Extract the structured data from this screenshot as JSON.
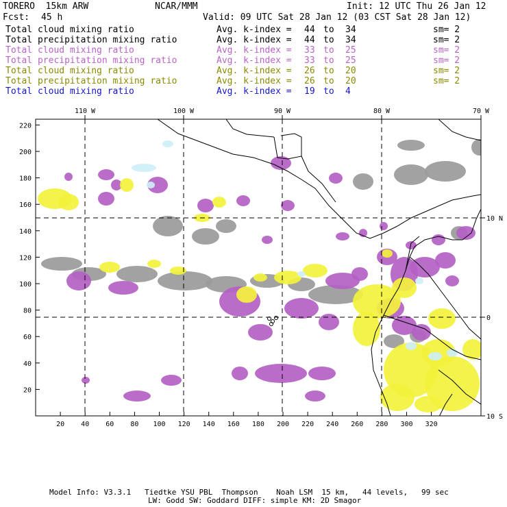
{
  "header": {
    "model": "TORERO  15km ARW",
    "org": "NCAR/MMM",
    "init": "Init: 12 UTC Thu 26 Jan 12",
    "fcst_label": "Fcst:",
    "fcst_value": "45 h",
    "valid": "Valid: 09 UTC Sat 28 Jan 12 (03 CST Sat 28 Jan 12)"
  },
  "legend": [
    {
      "field": "Total cloud mixing ratio",
      "kindex": "Avg. k-index = ",
      "from": "44",
      "to_word": "to",
      "to": "34",
      "sm": "sm= 2",
      "color": "#000000"
    },
    {
      "field": "Total precipitation mixing ratio",
      "kindex": "Avg. k-index = ",
      "from": "44",
      "to_word": "to",
      "to": "34",
      "sm": "sm= 2",
      "color": "#000000"
    },
    {
      "field": "Total cloud mixing ratio",
      "kindex": "Avg. k-index = ",
      "from": "33",
      "to_word": "to",
      "to": "25",
      "sm": "sm= 2",
      "color": "#b863c8"
    },
    {
      "field": "Total precipitation mixing ratio",
      "kindex": "Avg. k-index = ",
      "from": "33",
      "to_word": "to",
      "to": "25",
      "sm": "sm= 2",
      "color": "#b863c8"
    },
    {
      "field": "Total cloud mixing ratio",
      "kindex": "Avg. k-index = ",
      "from": "26",
      "to_word": "to",
      "to": "20",
      "sm": "sm= 2",
      "color": "#8a8a00"
    },
    {
      "field": "Total precipitation mixing ratio",
      "kindex": "Avg. k-index = ",
      "from": "26",
      "to_word": "to",
      "to": "20",
      "sm": "sm= 2",
      "color": "#8a8a00"
    },
    {
      "field": "Total cloud mixing ratio",
      "kindex": "Avg. k-index = ",
      "from": "19",
      "to_word": "to",
      "to": "4",
      "sm": "",
      "color": "#1515d0"
    }
  ],
  "map": {
    "lon_labels": [
      "110 W",
      "100 W",
      "90 W",
      "80 W",
      "70 W"
    ],
    "lat_labels": [
      "10 N",
      "0",
      "10 S"
    ],
    "x_ticks": [
      "20",
      "40",
      "60",
      "80",
      "100",
      "120",
      "140",
      "160",
      "180",
      "200",
      "220",
      "240",
      "260",
      "280",
      "300",
      "320"
    ],
    "y_ticks": [
      "220",
      "200",
      "180",
      "160",
      "140",
      "120",
      "100",
      "80",
      "60",
      "40",
      "20"
    ],
    "colors": {
      "gray": "#9a9a9a",
      "purple": "#b45fc4",
      "yellow": "#f2f23c",
      "cyan": "#cdeff7"
    }
  },
  "footer": {
    "line1": "Model Info: V3.3.1   Tiedtke YSU PBL  Thompson    Noah LSM  15 km,   44 levels,   99 sec",
    "line2": "LW: Godd SW: Goddard DIFF: simple KM: 2D Smagor"
  }
}
